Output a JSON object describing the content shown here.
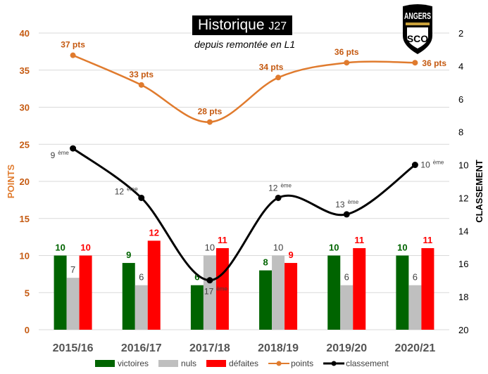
{
  "chart_data": {
    "type": "bar+line",
    "title": "Historique",
    "title_suffix": "J27",
    "subtitle": "depuis remontée en L1",
    "logo_text": "ANGERS SCO",
    "categories": [
      "2015/16",
      "2016/17",
      "2017/18",
      "2018/19",
      "2019/20",
      "2020/21"
    ],
    "ylabel": "POINTS",
    "y2label": "CLASSEMENT",
    "ylim": [
      0,
      40
    ],
    "yticks": [
      0,
      5,
      10,
      15,
      20,
      25,
      30,
      35,
      40
    ],
    "y2lim": [
      2,
      20
    ],
    "y2_inverted": true,
    "y2ticks": [
      2,
      4,
      6,
      8,
      10,
      12,
      14,
      16,
      18,
      20
    ],
    "grid": true,
    "legend_position": "bottom",
    "series": [
      {
        "name": "victoires",
        "type": "bar",
        "color": "#006400",
        "values": [
          10,
          9,
          6,
          8,
          10,
          10
        ]
      },
      {
        "name": "nuls",
        "type": "bar",
        "color": "#bfbfbf",
        "values": [
          7,
          6,
          10,
          10,
          6,
          6
        ]
      },
      {
        "name": "défaites",
        "type": "bar",
        "color": "#ff0000",
        "values": [
          10,
          12,
          11,
          9,
          11,
          11
        ]
      },
      {
        "name": "points",
        "type": "line",
        "axis": "left",
        "color": "#e07b2e",
        "values": [
          37,
          33,
          28,
          34,
          36,
          36
        ],
        "labels": [
          "37 pts",
          "33 pts",
          "28 pts",
          "34 pts",
          "36 pts",
          "36 pts"
        ]
      },
      {
        "name": "classement",
        "type": "line",
        "axis": "right",
        "color": "#000000",
        "values": [
          9,
          12,
          17,
          12,
          13,
          10
        ],
        "labels": [
          "9",
          "12",
          "17",
          "12",
          "13",
          "10"
        ],
        "label_suffix": "ème"
      }
    ]
  }
}
